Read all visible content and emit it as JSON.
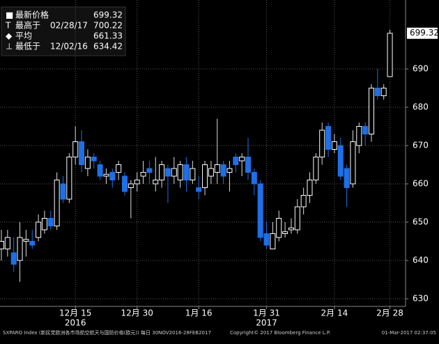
{
  "chart_data": {
    "type": "candlestick",
    "categories": [
      null,
      null,
      null,
      null,
      null,
      null,
      null,
      null,
      null,
      null,
      null,
      null,
      "12月 15",
      null,
      null,
      null,
      null,
      null,
      null,
      null,
      null,
      null,
      "12月 30",
      null,
      null,
      null,
      null,
      null,
      null,
      null,
      null,
      null,
      "1月 16",
      null,
      null,
      null,
      null,
      null,
      null,
      null,
      null,
      null,
      null,
      "1月 31",
      null,
      null,
      null,
      null,
      null,
      null,
      null,
      null,
      null,
      null,
      "2月 14",
      null,
      null,
      null,
      null,
      null,
      null,
      null,
      null,
      "2月 28"
    ],
    "x_groups": [
      {
        "label": "2016",
        "category": "12月 15"
      },
      {
        "label": "2017",
        "category": "1月 31"
      }
    ],
    "open": [
      643,
      643,
      642,
      640,
      645,
      645,
      646,
      648,
      651,
      649,
      660,
      656,
      667,
      671,
      664,
      667,
      665,
      662,
      663,
      663,
      662,
      659,
      660,
      662,
      664,
      660,
      661,
      664,
      662,
      661,
      665,
      661,
      659,
      659,
      662,
      663,
      665,
      663,
      667,
      666,
      667,
      663,
      660,
      647,
      643,
      646,
      647,
      648,
      648,
      654,
      657,
      661,
      667,
      675,
      669,
      670,
      664,
      660,
      670,
      675,
      673,
      685,
      683,
      688
    ],
    "high": [
      648,
      648,
      646,
      650,
      648,
      648,
      652,
      653,
      653,
      663,
      662,
      668,
      675,
      674,
      669,
      668,
      666,
      664,
      664,
      666,
      663,
      661,
      663,
      666,
      666,
      667,
      666,
      665,
      667,
      666,
      667,
      666,
      662,
      666,
      666,
      677,
      666,
      666,
      668,
      668,
      672,
      664,
      661,
      650,
      650,
      653,
      650,
      651,
      656,
      659,
      663,
      668,
      676,
      676,
      673,
      672,
      665,
      674,
      676,
      676,
      686,
      690,
      686,
      700.22
    ],
    "low": [
      640,
      641,
      637,
      634.42,
      641,
      643,
      645,
      647,
      648,
      648,
      655,
      655,
      665,
      663,
      662,
      664,
      661,
      660,
      659,
      661,
      657,
      651,
      658,
      660,
      660,
      658,
      659,
      655,
      660,
      659,
      658,
      660,
      656,
      657,
      660,
      660,
      660,
      658,
      663,
      662,
      661,
      657,
      645,
      643,
      643,
      645,
      646,
      647,
      647,
      652,
      655,
      660,
      665,
      667,
      668,
      661,
      654,
      659,
      668,
      670,
      671,
      682,
      682,
      688
    ],
    "close": [
      645,
      646,
      639,
      646,
      645.5,
      644,
      650,
      651,
      649,
      661,
      656,
      667,
      671,
      665,
      667,
      666,
      662,
      662.5,
      661,
      665,
      658,
      660,
      661,
      663,
      663,
      661,
      665,
      662,
      664,
      665,
      661,
      664,
      658,
      665,
      664,
      665,
      662,
      664,
      665,
      667,
      663,
      660,
      646,
      644,
      647,
      651,
      647.5,
      648.5,
      654,
      657,
      661,
      667,
      674,
      669,
      671,
      662,
      659,
      671,
      675,
      673,
      685,
      683,
      685,
      699.32
    ],
    "up_color": "#000000",
    "down_color": "#1f6fe6",
    "ylim": [
      628,
      708
    ],
    "yticks": [
      630,
      640,
      650,
      660,
      670,
      680,
      690
    ],
    "grid": true,
    "legend": [
      {
        "label": "最新价格",
        "value": 699.32
      },
      {
        "label": "最高于",
        "date": "02/28/17",
        "value": 700.22
      },
      {
        "label": "平均",
        "value": 661.33
      },
      {
        "label": "最低于",
        "date": "12/02/16",
        "value": 634.42
      }
    ],
    "footer": {
      "left": "SXPARO Index (新民党欧洲各市场航空航天与国防价格(欧元))  每日  30NOV2016-28FEB2017",
      "center": "Copyright© 2017 Bloomberg Finance L.P.",
      "right": "01-Mar-2017 02:37:05"
    }
  }
}
